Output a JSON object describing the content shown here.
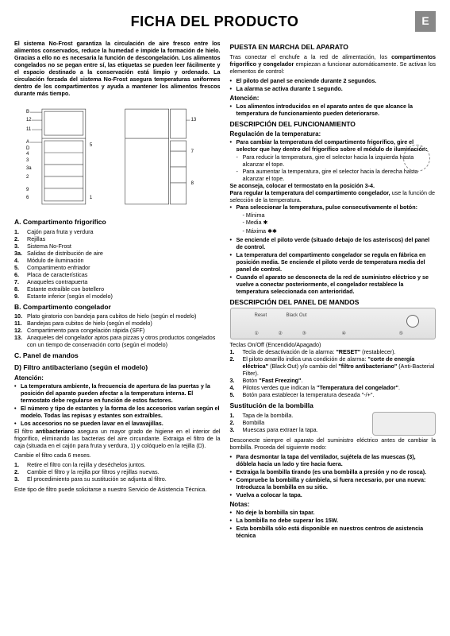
{
  "header": {
    "title": "FICHA DEL PRODUCTO",
    "lang": "E"
  },
  "intro": "El sistema No-Frost garantiza la circulación de aire fresco entre los alimentos conservados, reduce la humedad e impide la formación de hielo. Gracias a ello no es necesaria la función de descongelación. Los alimentos congelados no se pegan entre sí, las etiquetas se pueden leer fácilmente y el espacio destinado a la conservación está limpio y ordenado. La circulación forzada del sistema No-Frost asegura temperaturas uniformes dentro de los compartimentos y ayuda a mantener los alimentos frescos durante más tiempo.",
  "sectionA": {
    "title": "A. Compartimento frigorífico",
    "items": [
      {
        "n": "1.",
        "t": "Cajón para fruta y verdura"
      },
      {
        "n": "2.",
        "t": "Rejillas"
      },
      {
        "n": "3.",
        "t": "Sistema No-Frost"
      },
      {
        "n": "3a.",
        "t": "Salidas de distribución de aire"
      },
      {
        "n": "4.",
        "t": "Módulo de iluminación"
      },
      {
        "n": "5.",
        "t": "Compartimento enfriador"
      },
      {
        "n": "6.",
        "t": "Placa de características"
      },
      {
        "n": "7.",
        "t": "Anaqueles contrapuerta"
      },
      {
        "n": "8.",
        "t": "Estante extraíble con botellero"
      },
      {
        "n": "9.",
        "t": "Estante inferior (según el modelo)"
      }
    ]
  },
  "sectionB": {
    "title": "B. Compartimento congelador",
    "items": [
      {
        "n": "10.",
        "t": "Plato giratorio con bandeja para cubitos de hielo (según el modelo)"
      },
      {
        "n": "11.",
        "t": "Bandejas para cubitos de hielo (según el modelo)"
      },
      {
        "n": "12.",
        "t": "Compartimento para congelación rápida (SFF)"
      },
      {
        "n": "13.",
        "t": "Anaqueles del congelador aptos para pizzas y otros productos congelados con un tiempo de conservación corto (según el modelo)"
      }
    ]
  },
  "sectionC": {
    "title": "C. Panel de mandos"
  },
  "sectionD": {
    "title": "D) Filtro antibacteriano (según el modelo)"
  },
  "atencion": {
    "title": "Atención:",
    "bul": [
      "La temperatura ambiente, la frecuencia de apertura de las puertas y la posición del aparato pueden afectar a <b>la temperatura interna</b>. El termostato debe regularse en función de estos factores.",
      "<b>El número y tipo de estantes</b> y la forma de los accesorios varían según el modelo. Todas las repisas y estantes son extraíbles.",
      "<b>Los accesorios</b> no se pueden lavar en el lavavajillas."
    ]
  },
  "filtroText": "El filtro <b>antibacteriano</b> asegura un mayor grado de higiene en el interior del frigorífico, eliminando las bacterias del aire circundante. Extraiga el filtro de la caja (situada en el cajón para fruta y verdura, 1) y colóquelo en la rejilla (D).",
  "filtro6": "Cambie el filtro cada 6 meses.",
  "filtroSteps": [
    {
      "n": "1.",
      "t": "Retire el filtro con la rejilla y deséchelos juntos."
    },
    {
      "n": "2.",
      "t": "Cambie el filtro y la rejilla por filtros y rejillas nuevas."
    },
    {
      "n": "3.",
      "t": "El procedimiento para su sustitución se adjunta al filtro."
    }
  ],
  "filtroFoot": "Este tipo de filtro puede solicitarse a nuestro Servicio de Asistencia Técnica.",
  "puesta": {
    "title": "PUESTA EN MARCHA DEL APARATO",
    "lead": "Tras conectar el enchufe a la red de alimentación, los <b>compartimentos frigorífico y congelador</b> empiezan a funcionar automáticamente. Se activan los elementos de control:",
    "bul": [
      "El piloto del panel se enciende durante 2 segundos.",
      "<b>La alarma se activa durante 1 segundo.</b>"
    ],
    "attn": "Atención:",
    "attnBul": [
      "<b>Los alimentos introducidos en el aparato antes de que alcance la temperatura de funcionamiento pueden deteriorarse.</b>"
    ]
  },
  "func": {
    "title": "DESCRIPCIÓN DEL FUNCIONAMIENTO",
    "sub1": "Regulación de la temperatura:",
    "bul1": [
      "Para cambiar la temperatura del compartimento frigorífico, gire el selector que hay dentro del frigorífico sobre el módulo de iluminación:"
    ],
    "dash1": [
      "Para reducir la temperatura, gire el selector hacia la izquierda hasta alcanzar el tope.",
      "Para aumentar la temperatura, gire el selector hacia la derecha hasta alcanzar el tope."
    ],
    "rec": "Se aconseja, colocar el termostato en la posición 3-4.",
    "sub2": "Para regular la temperatura del compartimento congelador,",
    "sub2b": "use la función de selección de la temperatura.",
    "bul2": [
      "Para seleccionar la temperatura, pulse consecutivamente el botón:"
    ],
    "levels": [
      "- Mínima",
      "- Media",
      "- Máxima"
    ],
    "bul3": [
      "Se enciende el piloto verde (situado debajo de los asteriscos) del panel de control.",
      "La temperatura del compartimento congelador se regula en fábrica en posición media. Se enciende el piloto verde de temperatura media del panel de control.",
      "Cuando el aparato se desconecta de la red de suministro eléctrico y se vuelve a conectar posteriormente, el congelador restablece la temperatura seleccionada con anterioridad."
    ]
  },
  "panel": {
    "title": "DESCRIPCIÓN DEL PANEL DE MANDOS",
    "teclas": "Teclas On/Off (Encendido/Apagado)",
    "items": [
      {
        "n": "1.",
        "t": "Tecla de desactivación de la alarma: <b>\"RESET\"</b> (restablecer)."
      },
      {
        "n": "2.",
        "t": "El piloto amarillo indica una condición de alarma: <b>\"corte de energía eléctrica\"</b> (Black Out) y/o cambio del <b>\"filtro antibacteriano\"</b> (Anti-Bacterial Filter)."
      },
      {
        "n": "3.",
        "t": "Botón <b>\"Fast Freezing\"</b>."
      },
      {
        "n": "4.",
        "t": "Pilotos verdes que indican la <b>\"Temperatura del congelador\"</b>."
      },
      {
        "n": "5.",
        "t": "Botón para establecer la temperatura deseada \"-/+\"."
      }
    ]
  },
  "bomb": {
    "title": "Sustitución de la bombilla",
    "items": [
      {
        "n": "1.",
        "t": "Tapa de la bombilla."
      },
      {
        "n": "2.",
        "t": "Bombilla"
      },
      {
        "n": "3.",
        "t": "Muescas para extraer la tapa."
      }
    ],
    "lead": "Desconecte siempre el aparato del suministro eléctrico antes de cambiar la bombilla. Proceda del siguiente modo:",
    "bul": [
      "Para desmontar la tapa del ventilador, sujétela de las muescas (3), dóblela hacia un lado y tire hacia fuera.",
      "Extraiga la bombilla tirando (es una bombilla a presión y no de rosca).",
      "Compruebe la bombilla y cámbiela, si fuera necesario, por una nueva: Introduzca la bombilla en su sitio.",
      "Vuelva a colocar la tapa."
    ],
    "notas": "Notas:",
    "notasBul": [
      "No deje la bombilla sin tapar.",
      "La bombilla no debe superar los 15W.",
      "Esta bombilla sólo está disponible en nuestros centros de asistencia técnica"
    ]
  }
}
